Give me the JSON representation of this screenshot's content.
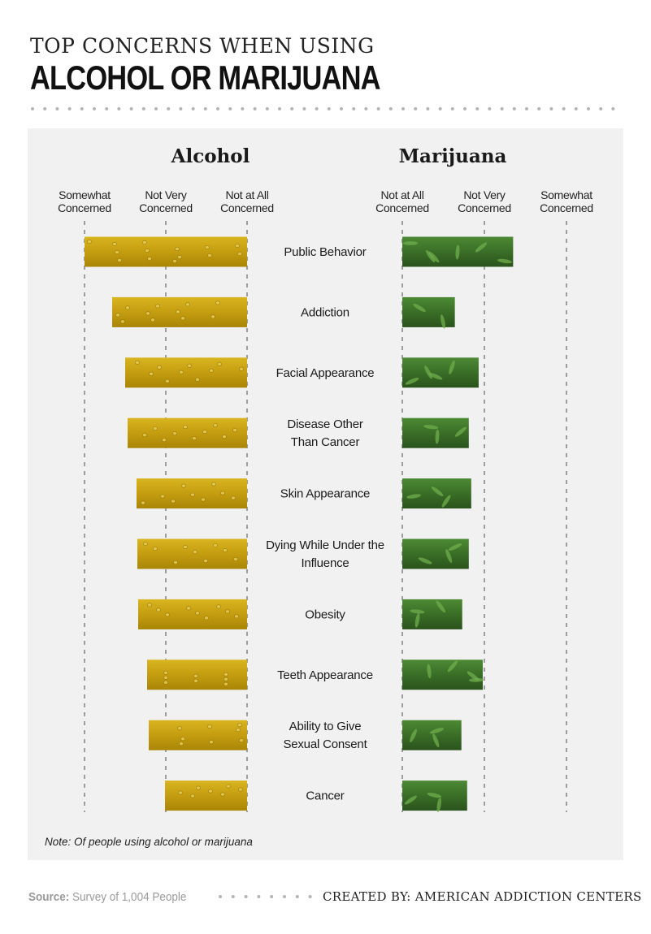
{
  "header": {
    "title_top": "TOP CONCERNS WHEN USING",
    "title_main": "ALCOHOL OR MARIJUANA"
  },
  "chart_data": {
    "type": "bar",
    "categories": [
      "Public Behavior",
      "Addiction",
      "Facial Appearance",
      "Disease Other\nThan Cancer",
      "Skin Appearance",
      "Dying While Under the\nInfluence",
      "Obesity",
      "Teeth Appearance",
      "Ability to Give\nSexual Consent",
      "Cancer"
    ],
    "scale": [
      "Not at All\nConcerned",
      "Not Very\nConcerned",
      "Somewhat\nConcerned"
    ],
    "series": [
      {
        "name": "Alcohol",
        "values": [
          2.0,
          1.66,
          1.5,
          1.47,
          1.36,
          1.35,
          1.34,
          1.23,
          1.21,
          1.01
        ],
        "color": "#c9a314"
      },
      {
        "name": "Marijuana",
        "values": [
          1.35,
          0.64,
          0.93,
          0.81,
          0.84,
          0.81,
          0.73,
          0.98,
          0.72,
          0.79
        ],
        "color": "#3f7a2e"
      }
    ],
    "note": "Note: Of people using alcohol or marijuana"
  },
  "footer": {
    "source_label": "Source:",
    "source_text": " Survey of 1,004 People",
    "credit": "CREATED BY: AMERICAN ADDICTION CENTERS"
  }
}
